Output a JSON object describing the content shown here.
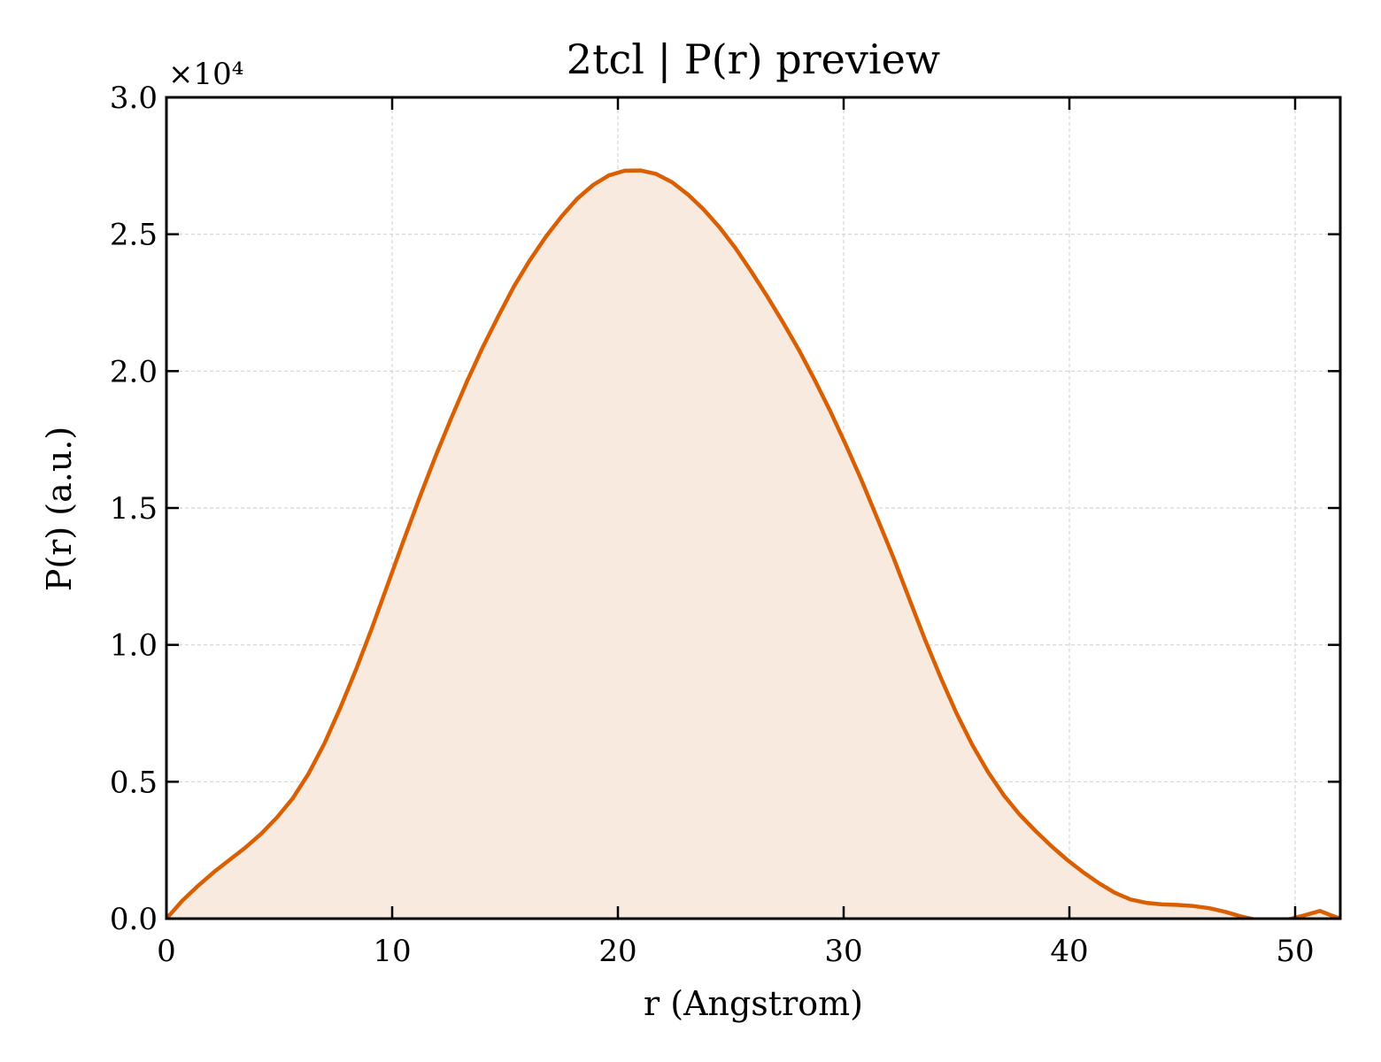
{
  "chart_data": {
    "type": "area",
    "title": "2tcl | P(r) preview",
    "xlabel": "r (Angstrom)",
    "ylabel": "P(r) (a.u.)",
    "y_multiplier_label": "×10⁴",
    "xlim": [
      0,
      52
    ],
    "ylim": [
      0,
      30000
    ],
    "xticks": [
      0,
      10,
      20,
      30,
      40,
      50
    ],
    "xtick_labels": [
      "0",
      "10",
      "20",
      "30",
      "40",
      "50"
    ],
    "yticks": [
      0,
      5000,
      10000,
      15000,
      20000,
      25000,
      30000
    ],
    "ytick_labels": [
      "0.0",
      "0.5",
      "1.0",
      "1.5",
      "2.0",
      "2.5",
      "3.0"
    ],
    "grid": true,
    "line_color": "#d95f02",
    "fill_color": "#f8eadf",
    "series": [
      {
        "x": [
          0,
          0.7,
          1.4,
          2.1,
          2.8,
          3.5,
          4.2,
          4.9,
          5.6,
          6.3,
          7.0,
          7.7,
          8.4,
          9.1,
          9.8,
          10.5,
          11.2,
          11.9,
          12.6,
          13.3,
          14.0,
          14.7,
          15.4,
          16.1,
          16.8,
          17.5,
          18.2,
          18.9,
          19.6,
          20.3,
          21.0,
          21.7,
          22.4,
          23.1,
          23.8,
          24.5,
          25.2,
          25.9,
          26.6,
          27.3,
          28.0,
          28.7,
          29.4,
          30.1,
          30.8,
          31.5,
          32.2,
          32.9,
          33.6,
          34.3,
          35.0,
          35.7,
          36.4,
          37.1,
          37.8,
          38.5,
          39.2,
          39.9,
          40.6,
          41.3,
          42.0,
          42.7,
          43.4,
          44.1,
          44.8,
          45.5,
          46.2,
          46.9,
          47.6,
          48.3,
          49.0,
          49.7,
          50.4,
          51.1,
          51.5,
          52.0
        ],
        "values": [
          0,
          650,
          1200,
          1700,
          2150,
          2600,
          3100,
          3700,
          4400,
          5300,
          6400,
          7700,
          9100,
          10600,
          12200,
          13800,
          15350,
          16850,
          18250,
          19600,
          20850,
          22000,
          23100,
          24050,
          24900,
          25650,
          26300,
          26800,
          27150,
          27320,
          27330,
          27200,
          26900,
          26450,
          25900,
          25250,
          24500,
          23650,
          22750,
          21800,
          20800,
          19700,
          18550,
          17300,
          16000,
          14600,
          13200,
          11700,
          10200,
          8800,
          7500,
          6350,
          5350,
          4500,
          3800,
          3200,
          2650,
          2150,
          1700,
          1300,
          950,
          700,
          580,
          520,
          500,
          460,
          380,
          250,
          80,
          -50,
          -80,
          -30,
          120,
          280,
          150,
          0
        ]
      }
    ]
  }
}
